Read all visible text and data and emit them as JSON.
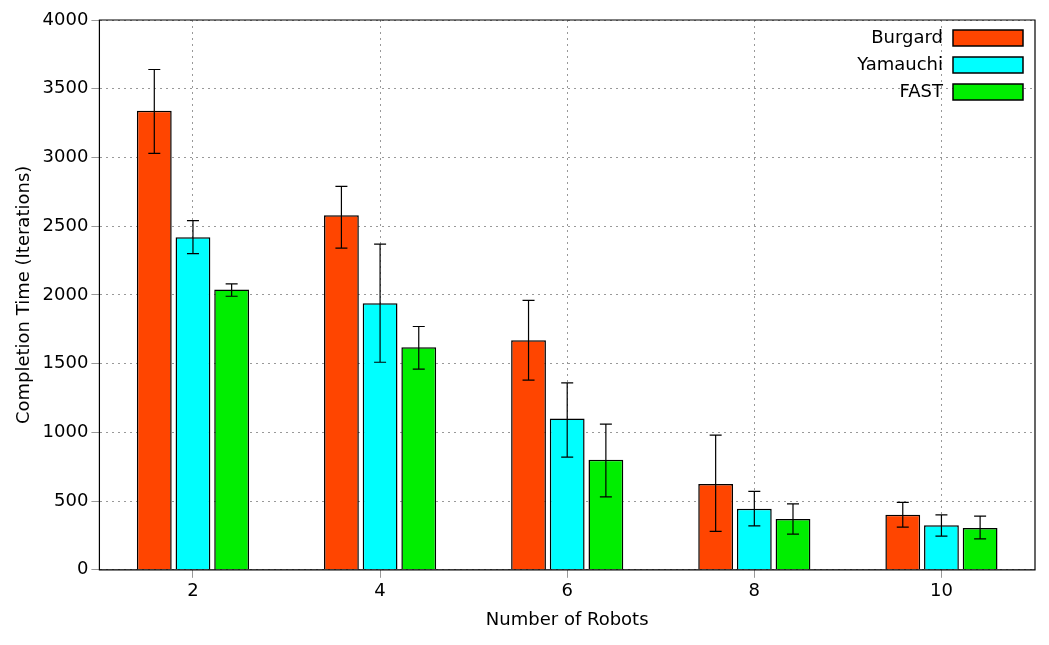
{
  "chart_data": {
    "type": "bar",
    "xlabel": "Number of Robots",
    "ylabel": "Completion Time (Iterations)",
    "categories": [
      "2",
      "4",
      "6",
      "8",
      "10"
    ],
    "series": [
      {
        "name": "Burgard",
        "color": "#ff4500",
        "values": [
          3340,
          2580,
          1670,
          625,
          400
        ],
        "errors": [
          [
            3030,
            3640
          ],
          [
            2340,
            2790
          ],
          [
            1380,
            1960
          ],
          [
            280,
            980
          ],
          [
            310,
            490
          ]
        ]
      },
      {
        "name": "Yamauchi",
        "color": "#00ffff",
        "values": [
          2420,
          1940,
          1100,
          445,
          325
        ],
        "errors": [
          [
            2300,
            2540
          ],
          [
            1510,
            2370
          ],
          [
            820,
            1360
          ],
          [
            320,
            570
          ],
          [
            245,
            400
          ]
        ]
      },
      {
        "name": "FAST",
        "color": "#00ee00",
        "values": [
          2040,
          1620,
          800,
          370,
          305
        ],
        "errors": [
          [
            1990,
            2080
          ],
          [
            1460,
            1770
          ],
          [
            530,
            1060
          ],
          [
            260,
            480
          ],
          [
            225,
            390
          ]
        ]
      }
    ],
    "ylim": [
      0,
      4000
    ],
    "yticks": [
      0,
      500,
      1000,
      1500,
      2000,
      2500,
      3000,
      3500,
      4000
    ],
    "grid": true,
    "legend": "top right"
  }
}
